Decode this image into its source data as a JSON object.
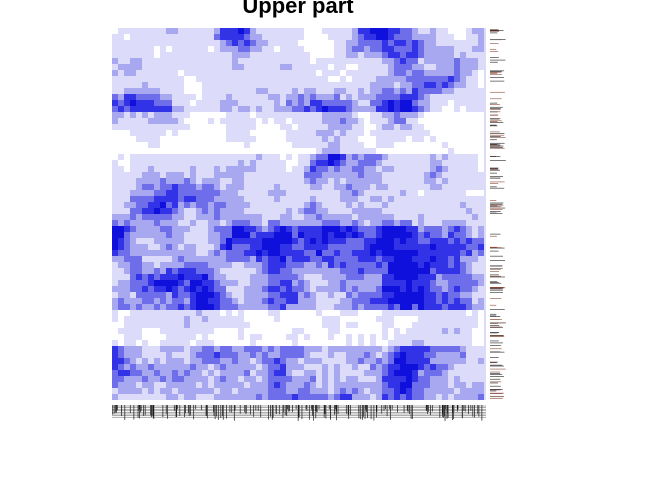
{
  "chart_data": {
    "type": "heatmap",
    "title": "Upper part",
    "xlabel": "",
    "ylabel": "",
    "grid": false,
    "legend": "none",
    "palette": [
      "#ffffff",
      "#dcdcfa",
      "#a8a8f0",
      "#6e6eea",
      "#3232e6",
      "#1010dc"
    ],
    "bands": [
      {
        "position": "upper",
        "tone": "light"
      },
      {
        "position": "middle",
        "tone": "dark"
      },
      {
        "position": "lower",
        "tone": "light"
      },
      {
        "position": "bottom",
        "tone": "dark"
      }
    ]
  }
}
